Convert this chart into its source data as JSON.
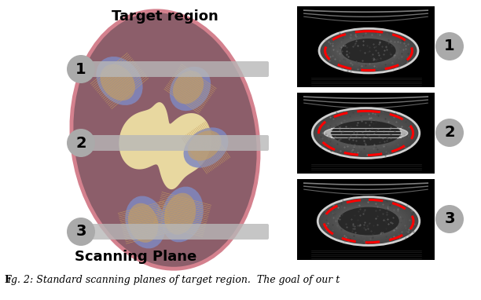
{
  "title_top": "Target region",
  "title_bottom": "Scanning Plane",
  "background_color": "#ffffff",
  "kidney_outer_color": "#8c5e6a",
  "kidney_outer_edge_color": "#d4818e",
  "kidney_inner_color": "#6e404e",
  "pelvis_color": "#e8d8a0",
  "label_circle_color": "#aaaaaa",
  "plane_labels": [
    "1",
    "2",
    "3"
  ],
  "label_fontsize": 14,
  "title_fontsize": 13,
  "caption_fontsize": 9,
  "figsize": [
    6.12,
    3.82
  ],
  "dpi": 100,
  "calyx_blue": "#8088c0",
  "calyx_orange": "#c8a060",
  "line_color": "#c8a060"
}
